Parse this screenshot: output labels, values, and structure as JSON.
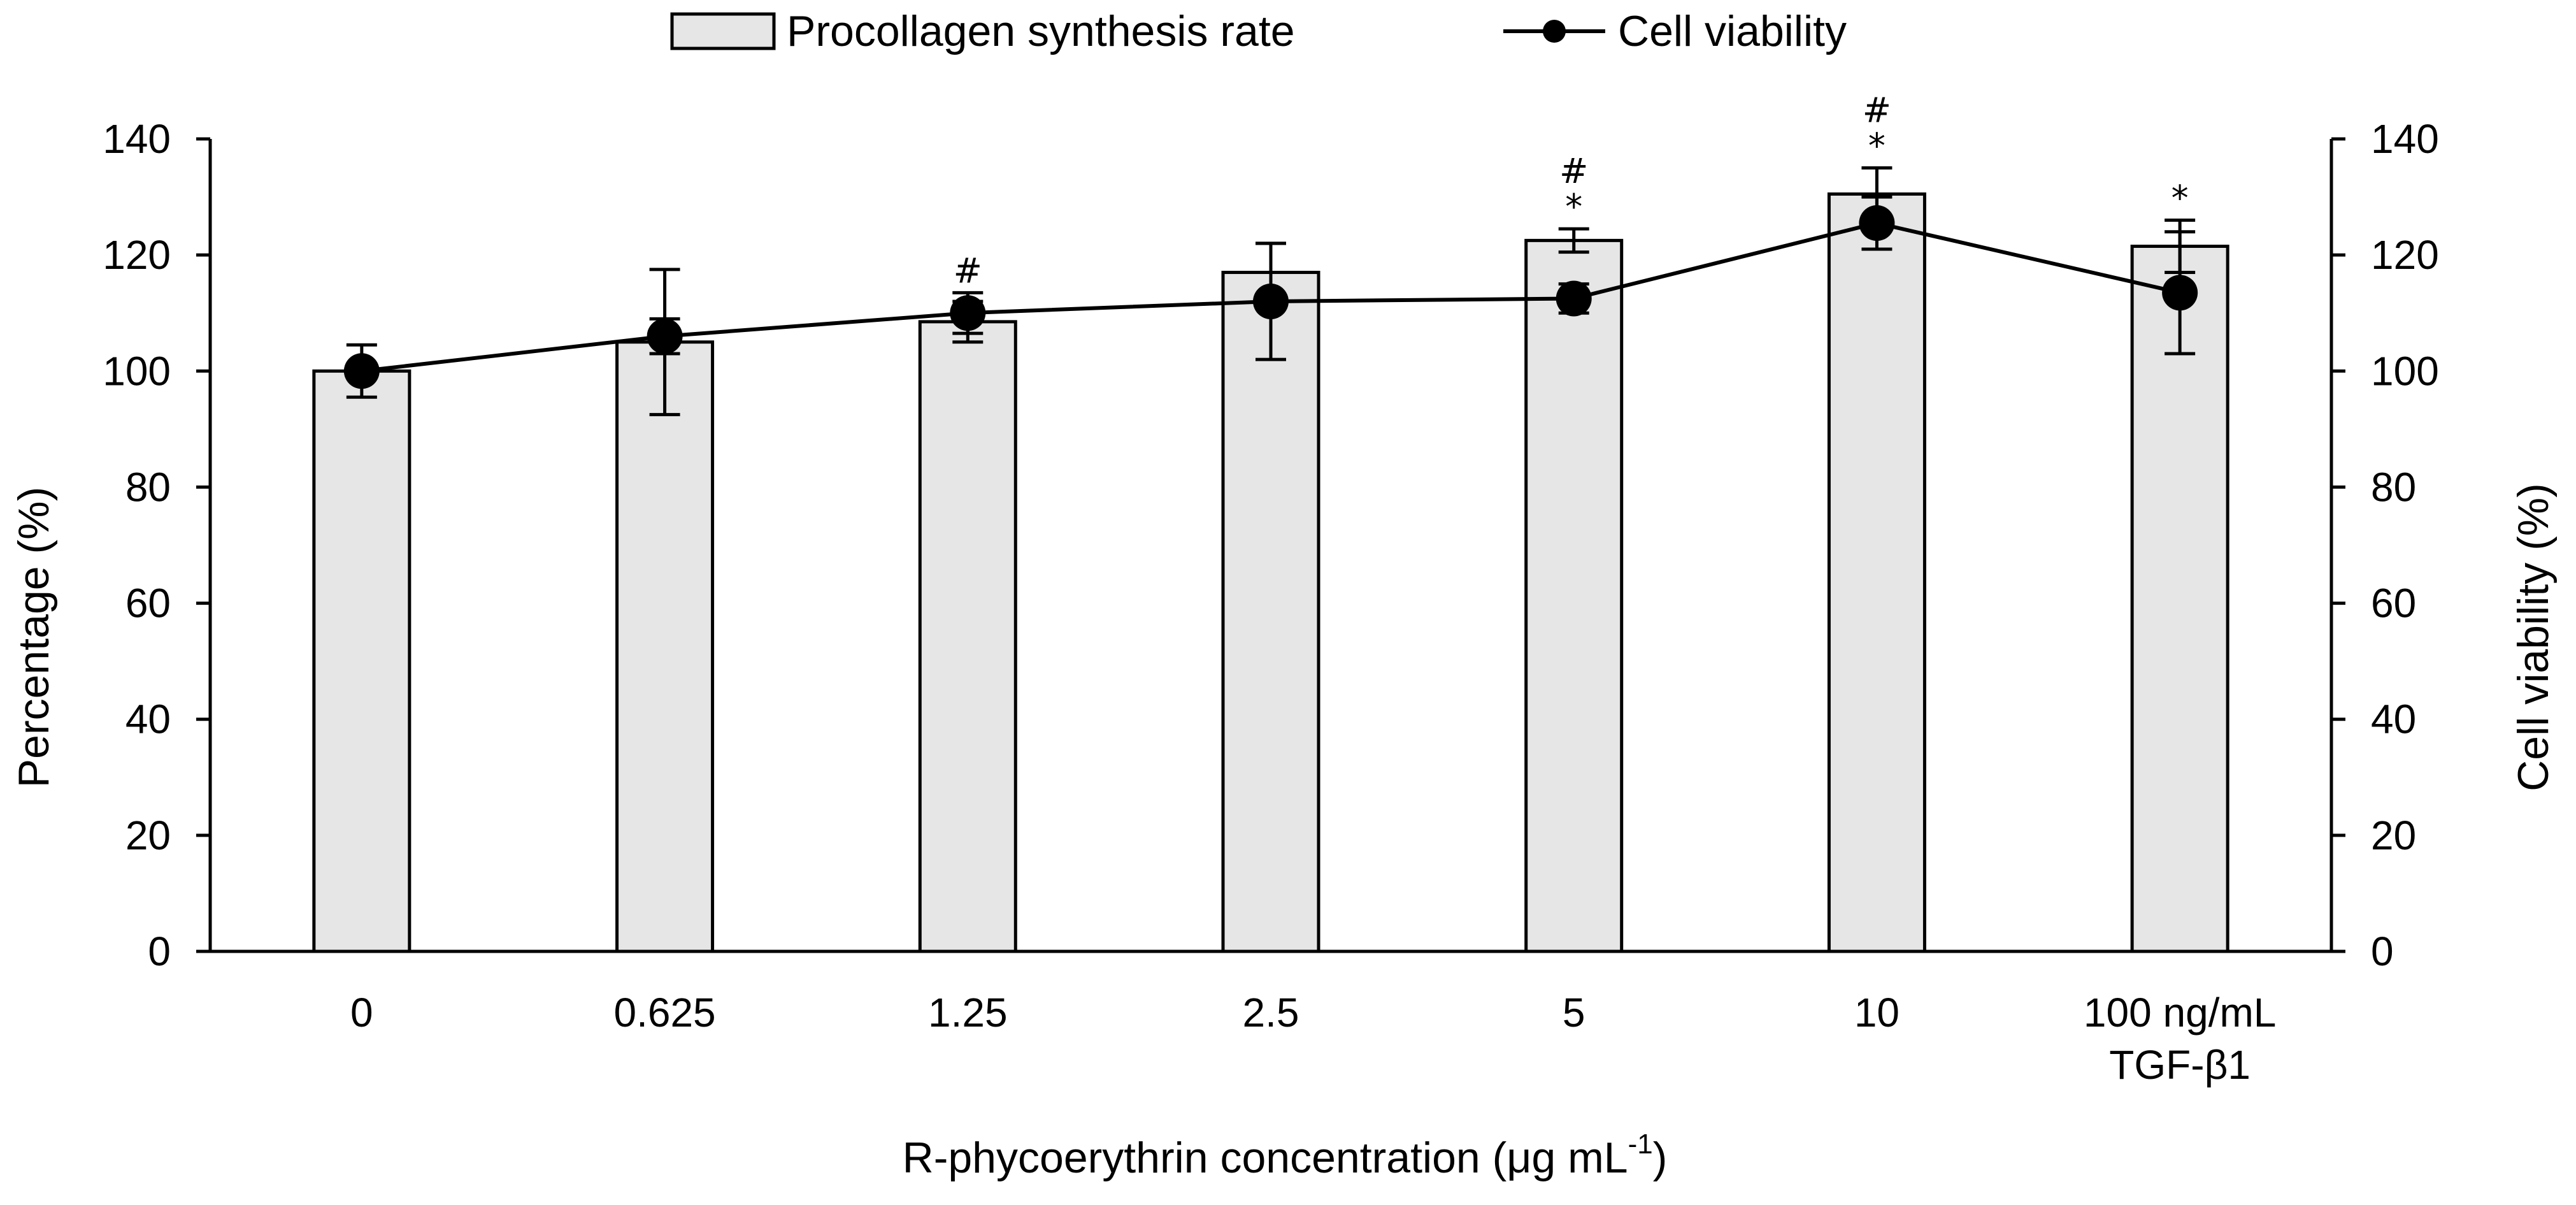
{
  "chart_data": {
    "type": "bar",
    "title": "",
    "xlabel": "R-phycoerythrin concentration (μg mL",
    "xlabel_superscript": "-1",
    "xlabel_suffix": ")",
    "ylabel": "Percentage (%)",
    "y2label": "Cell viability (%)",
    "ylim": [
      0,
      140
    ],
    "y2lim": [
      0,
      140
    ],
    "yticks": [
      0,
      20,
      40,
      60,
      80,
      100,
      120,
      140
    ],
    "categories": [
      {
        "lines": [
          "0"
        ]
      },
      {
        "lines": [
          "0.625"
        ]
      },
      {
        "lines": [
          "1.25"
        ]
      },
      {
        "lines": [
          "2.5"
        ]
      },
      {
        "lines": [
          "5"
        ]
      },
      {
        "lines": [
          "10"
        ]
      },
      {
        "lines": [
          "100 ng/mL",
          "TGF-β1"
        ]
      }
    ],
    "legend": {
      "position": "top-center",
      "bar_label": "Procollagen synthesis rate",
      "line_label": "Cell viability"
    },
    "series": [
      {
        "name": "Procollagen synthesis rate",
        "kind": "bar",
        "axis": "left",
        "color": "#e6e6e6",
        "values": [
          100,
          105,
          108.5,
          117,
          122.5,
          130.5,
          121.5
        ],
        "errors": [
          0,
          12.5,
          3.5,
          5,
          2,
          4.5,
          4.5
        ]
      },
      {
        "name": "Cell viability",
        "kind": "line",
        "axis": "right",
        "color": "#000000",
        "values": [
          100,
          106,
          110,
          112,
          112.5,
          125.5,
          113.5
        ],
        "errors": [
          4.5,
          3,
          3.5,
          10,
          2.5,
          4.5,
          10.5
        ]
      }
    ],
    "annotations": [
      {
        "category_index": 2,
        "lines": [
          "#"
        ]
      },
      {
        "category_index": 4,
        "lines": [
          "#",
          "*"
        ]
      },
      {
        "category_index": 5,
        "lines": [
          "#",
          "*"
        ]
      },
      {
        "category_index": 6,
        "lines": [
          "*"
        ]
      }
    ]
  }
}
